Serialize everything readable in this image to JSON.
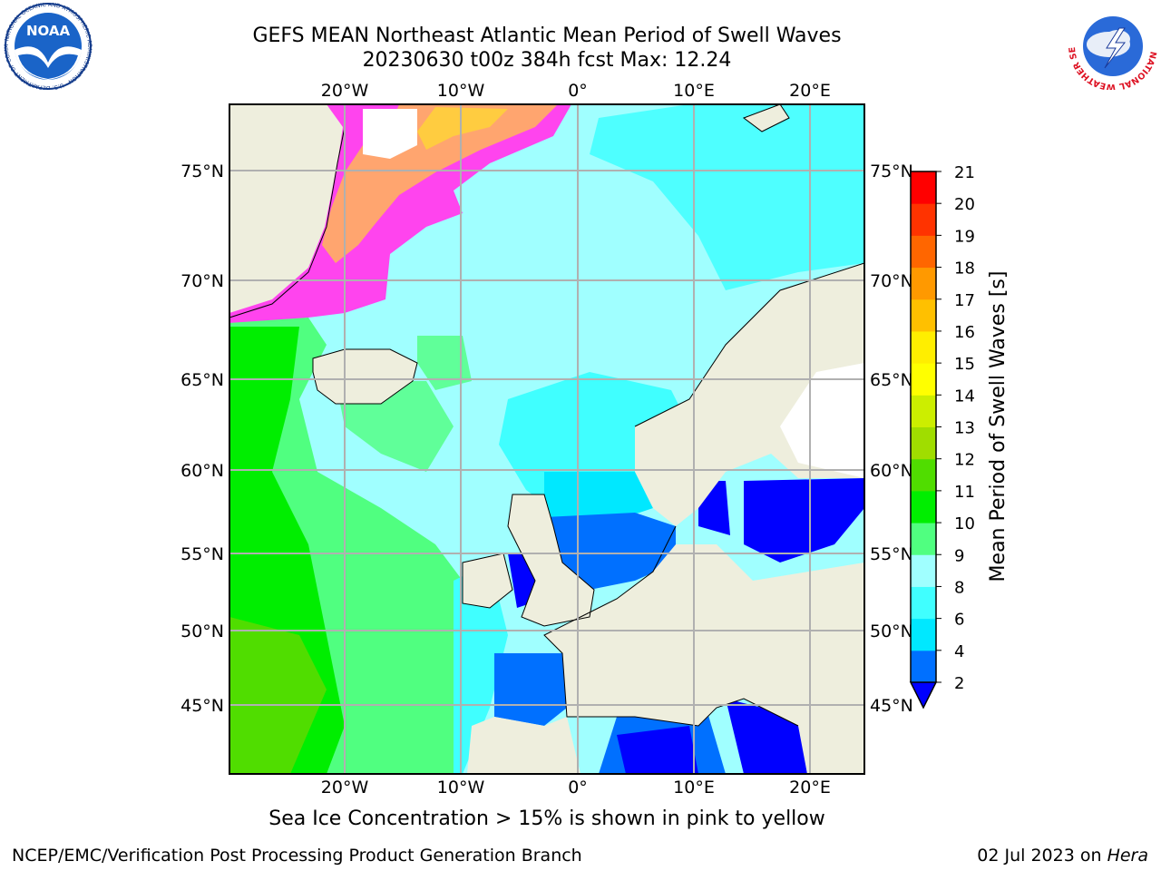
{
  "title": {
    "line1": "GEFS MEAN Northeast Atlantic Mean Period of Swell Waves",
    "line2": "20230630 t00z 384h fcst   Max: 12.24"
  },
  "note": "Sea Ice Concentration > 15% is shown in pink to yellow",
  "footer": {
    "left": "NCEP/EMC/Verification Post Processing Product Generation Branch",
    "right_date": "02 Jul 2023 on",
    "right_host": "Hera"
  },
  "logos": {
    "noaa_text": "NOAA",
    "noaa_ring": "NATIONAL OCEANIC AND ATMOSPHERIC ADMINISTRATION · U.S. DEPARTMENT OF COMMERCE",
    "nws_ring": "NATIONAL WEATHER SERVICE"
  },
  "map": {
    "lon_labels": [
      "20°W",
      "10°W",
      "0°",
      "10°E",
      "20°E"
    ],
    "lat_labels": [
      "75°N",
      "70°N",
      "65°N",
      "60°N",
      "55°N",
      "50°N",
      "45°N"
    ]
  },
  "colorbar": {
    "label": "Mean Period of Swell Waves [s]",
    "ticks": [
      "2",
      "4",
      "6",
      "8",
      "9",
      "10",
      "11",
      "12",
      "13",
      "14",
      "15",
      "16",
      "17",
      "18",
      "19",
      "20",
      "21"
    ],
    "colors": [
      "#0000ff",
      "#0070ff",
      "#00e8ff",
      "#40ffff",
      "#a0ffff",
      "#50ff80",
      "#00ee00",
      "#50dd00",
      "#a0dd00",
      "#ccee00",
      "#ffff00",
      "#ffee00",
      "#ffc000",
      "#ff9900",
      "#ff6600",
      "#ff3300",
      "#ff0000"
    ]
  },
  "colors": {
    "land": "#eeeedd",
    "grid": "#b0b0b0",
    "ice_pink": "#ff44ee",
    "ice_orange": "#ffb060"
  }
}
